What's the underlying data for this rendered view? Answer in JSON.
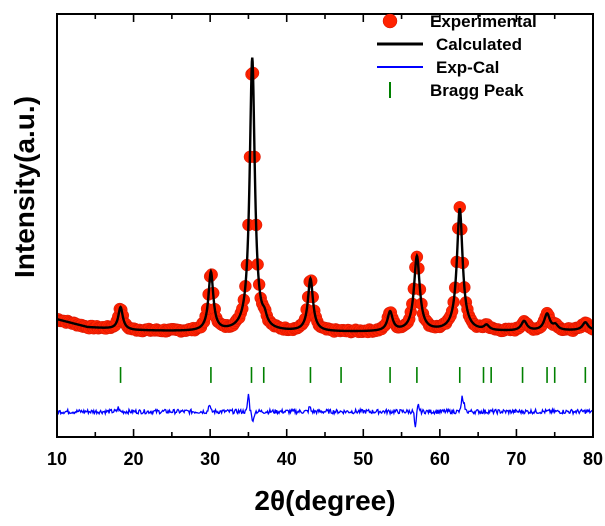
{
  "chart_data": {
    "type": "scatter",
    "xlabel": "2θ(degree)",
    "ylabel": "Intensity(a.u.)",
    "xlim": [
      10,
      80
    ],
    "ylim": [
      -330,
      1000
    ],
    "xticks": [
      10,
      20,
      30,
      40,
      50,
      60,
      70,
      80
    ],
    "yticks_shown": false,
    "legend_position": "top-right",
    "legend": [
      {
        "label": "Experimental",
        "marker": "circle",
        "color": "#ff2200"
      },
      {
        "label": "Calculated",
        "marker": "line",
        "color": "#000000"
      },
      {
        "label": "Exp-Cal",
        "marker": "line",
        "color": "#0000ff"
      },
      {
        "label": "Bragg Peak",
        "marker": "vbar",
        "color": "#008000"
      }
    ],
    "model": {
      "background": [
        [
          10,
          40
        ],
        [
          14,
          15
        ],
        [
          20,
          5
        ],
        [
          30,
          0
        ],
        [
          50,
          0
        ],
        [
          70,
          2
        ],
        [
          80,
          5
        ]
      ],
      "peaks": [
        {
          "pos": 18.3,
          "height": 70,
          "width": 0.35
        },
        {
          "pos": 30.1,
          "height": 185,
          "width": 0.38
        },
        {
          "pos": 35.5,
          "height": 860,
          "width": 0.4
        },
        {
          "pos": 37.1,
          "height": 25,
          "width": 0.35
        },
        {
          "pos": 43.1,
          "height": 165,
          "width": 0.4
        },
        {
          "pos": 53.5,
          "height": 60,
          "width": 0.4
        },
        {
          "pos": 57.0,
          "height": 235,
          "width": 0.45
        },
        {
          "pos": 62.6,
          "height": 385,
          "width": 0.45
        },
        {
          "pos": 66.1,
          "height": 15,
          "width": 0.4
        },
        {
          "pos": 71.0,
          "height": 30,
          "width": 0.45
        },
        {
          "pos": 74.0,
          "height": 52,
          "width": 0.45
        },
        {
          "pos": 75.1,
          "height": 15,
          "width": 0.4
        },
        {
          "pos": 79.0,
          "height": 25,
          "width": 0.45
        }
      ]
    },
    "series": [
      {
        "name": "Experimental",
        "color": "#ff2200"
      },
      {
        "name": "Calculated",
        "color": "#000000"
      },
      {
        "name": "Exp-Cal",
        "color": "#0000ff",
        "offset": -250,
        "spikes": [
          [
            18.0,
            12
          ],
          [
            29.9,
            25
          ],
          [
            35.0,
            55
          ],
          [
            35.6,
            -35
          ],
          [
            43.0,
            15
          ],
          [
            56.8,
            -55
          ],
          [
            57.2,
            20
          ],
          [
            62.9,
            45
          ],
          [
            63.2,
            20
          ]
        ]
      },
      {
        "name": "Bragg Peak",
        "color": "#008000",
        "y_base": -110,
        "bar_height": 50,
        "positions": [
          18.3,
          30.1,
          35.4,
          37.0,
          43.1,
          47.1,
          53.5,
          57.0,
          62.6,
          65.7,
          66.7,
          70.8,
          74.0,
          75.0,
          79.0
        ]
      }
    ]
  }
}
